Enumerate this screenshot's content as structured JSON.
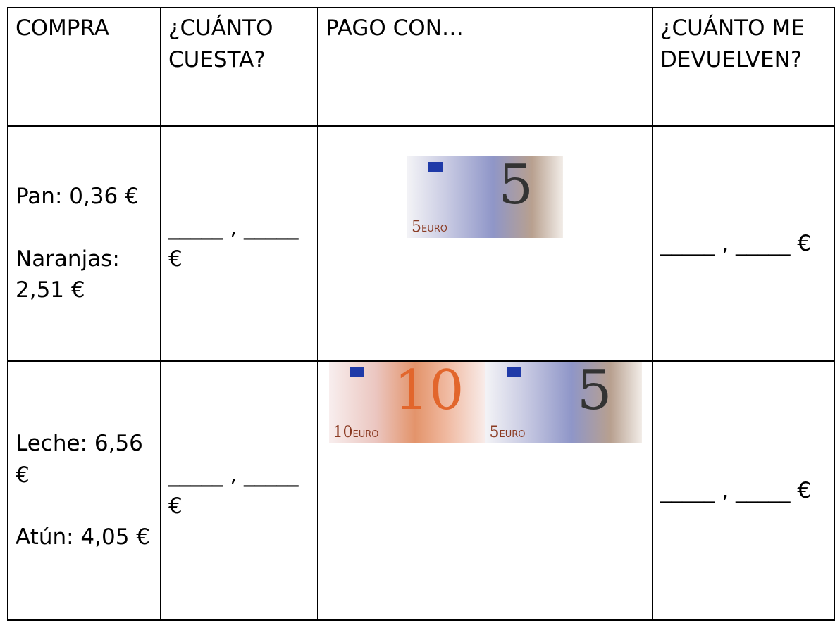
{
  "table": {
    "header": [
      "COMPRA",
      "¿CUÁNTO CUESTA?",
      "PAGO CON…",
      "¿CUÁNTO ME DEVUELVEN?"
    ],
    "rows": [
      {
        "items": [
          "Pan: 0,36 €",
          "Naranjas: 2,51 €"
        ],
        "cost": "_____ , _____ €",
        "notes": [
          "5"
        ],
        "change": "_____ , _____ €"
      },
      {
        "items": [
          "Leche: 6,56 €",
          "Atún: 4,05 €"
        ],
        "cost": "_____ , _____ €",
        "notes": [
          "10",
          "5"
        ],
        "change": "_____ , _____ €"
      }
    ],
    "note_label": "EURO"
  }
}
